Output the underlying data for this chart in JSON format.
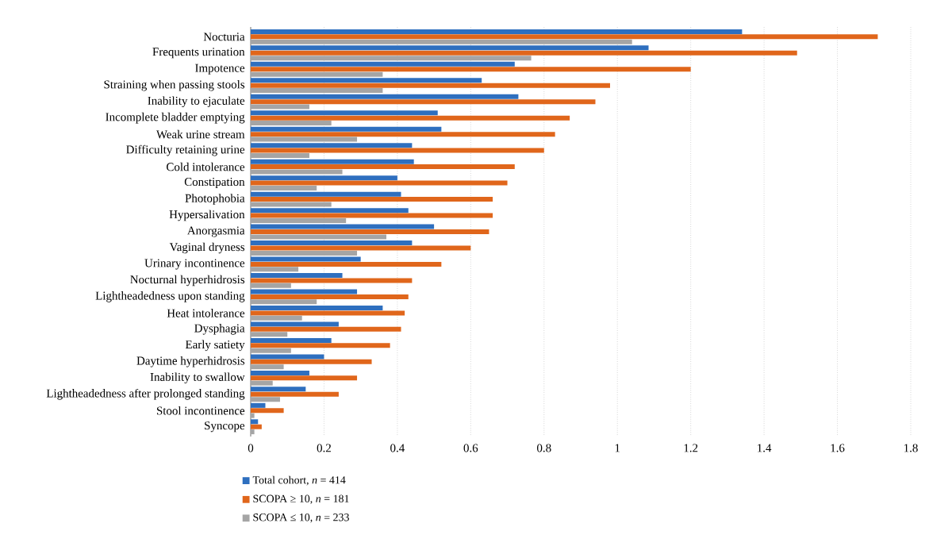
{
  "chart_data": {
    "type": "bar",
    "orientation": "horizontal",
    "categories": [
      "Nocturia",
      "Frequents urination",
      "Impotence",
      "Straining when passing stools",
      "Inability to ejaculate",
      "Incomplete bladder emptying",
      "Weak urine stream",
      "Difficulty retaining urine",
      "Cold intolerance",
      "Constipation",
      "Photophobia",
      "Hypersalivation",
      "Anorgasmia",
      "Vaginal dryness",
      "Urinary incontinence",
      "Nocturnal hyperhidrosis",
      "Lightheadedness upon standing",
      "Heat intolerance",
      "Dysphagia",
      "Early satiety",
      "Daytime hyperhidrosis",
      "Inability to swallow",
      "Lightheadedness after prolonged standing",
      "Stool incontinence",
      "Syncope"
    ],
    "series": [
      {
        "name": "Total cohort, *n* = 414",
        "color": "#2e6fbf",
        "values": [
          1.34,
          1.085,
          0.72,
          0.63,
          0.73,
          0.51,
          0.52,
          0.44,
          0.445,
          0.4,
          0.41,
          0.43,
          0.5,
          0.44,
          0.3,
          0.25,
          0.29,
          0.36,
          0.24,
          0.22,
          0.2,
          0.16,
          0.15,
          0.04,
          0.02
        ]
      },
      {
        "name": "SCOPA ≥ 10, *n* = 181",
        "color": "#e0661b",
        "values": [
          1.71,
          1.49,
          1.2,
          0.98,
          0.94,
          0.87,
          0.83,
          0.8,
          0.72,
          0.7,
          0.66,
          0.66,
          0.65,
          0.6,
          0.52,
          0.44,
          0.43,
          0.42,
          0.41,
          0.38,
          0.33,
          0.29,
          0.24,
          0.09,
          0.03
        ]
      },
      {
        "name": "SCOPA ≤ 10, *n* = 233",
        "color": "#a5a5a5",
        "values": [
          1.04,
          0.765,
          0.36,
          0.36,
          0.16,
          0.22,
          0.29,
          0.16,
          0.25,
          0.18,
          0.22,
          0.26,
          0.37,
          0.29,
          0.13,
          0.11,
          0.18,
          0.14,
          0.1,
          0.11,
          0.09,
          0.06,
          0.08,
          0.01,
          0.01
        ]
      }
    ],
    "xlim": [
      0,
      1.8
    ],
    "xticks": [
      0,
      0.2,
      0.4,
      0.6,
      0.8,
      1,
      1.2,
      1.4,
      1.6,
      1.8
    ],
    "grid": "x",
    "legend": "bottom left"
  }
}
